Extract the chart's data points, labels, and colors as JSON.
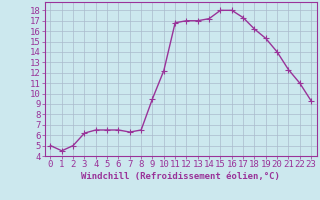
{
  "x": [
    0,
    1,
    2,
    3,
    4,
    5,
    6,
    7,
    8,
    9,
    10,
    11,
    12,
    13,
    14,
    15,
    16,
    17,
    18,
    19,
    20,
    21,
    22,
    23
  ],
  "y": [
    5.0,
    4.5,
    5.0,
    6.2,
    6.5,
    6.5,
    6.5,
    6.3,
    6.5,
    9.5,
    12.2,
    16.8,
    17.0,
    17.0,
    17.2,
    18.0,
    18.0,
    17.3,
    16.2,
    15.3,
    14.0,
    12.3,
    11.0,
    9.3
  ],
  "line_color": "#993399",
  "marker": "+",
  "marker_size": 4,
  "bg_color": "#cce8ee",
  "grid_color": "#aabbcc",
  "xlabel": "Windchill (Refroidissement éolien,°C)",
  "ylabel_ticks": [
    4,
    5,
    6,
    7,
    8,
    9,
    10,
    11,
    12,
    13,
    14,
    15,
    16,
    17,
    18
  ],
  "xlim": [
    -0.5,
    23.5
  ],
  "ylim": [
    4,
    18.8
  ],
  "xticks": [
    0,
    1,
    2,
    3,
    4,
    5,
    6,
    7,
    8,
    9,
    10,
    11,
    12,
    13,
    14,
    15,
    16,
    17,
    18,
    19,
    20,
    21,
    22,
    23
  ],
  "xlabel_fontsize": 6.5,
  "tick_fontsize": 6.5,
  "line_width": 1.0
}
